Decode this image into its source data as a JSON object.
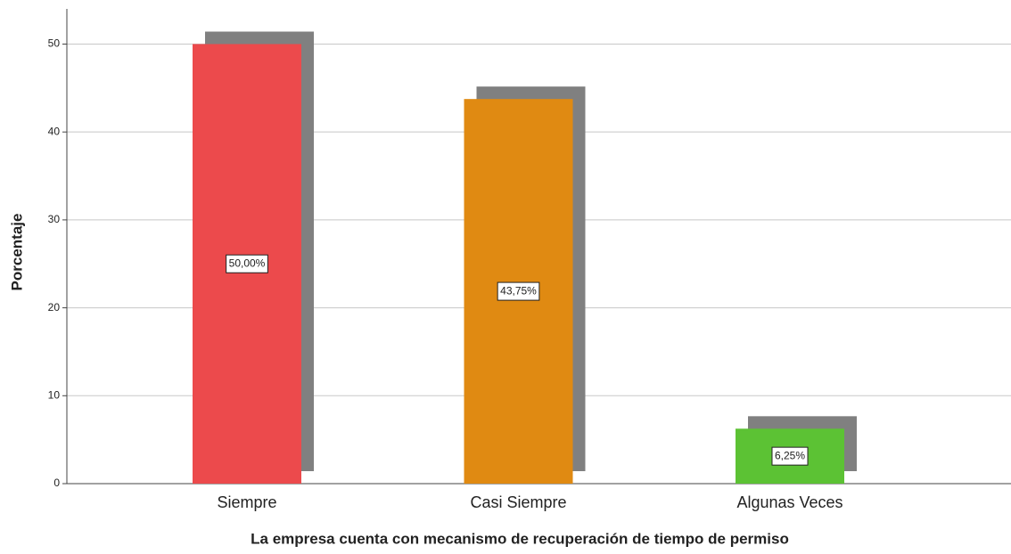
{
  "chart_data": {
    "type": "bar",
    "x_label": "La empresa cuenta con mecanismo de recuperación de tiempo de permiso",
    "y_label": "Porcentaje",
    "categories": [
      "Siempre",
      "Casi Siempre",
      "Algunas Veces"
    ],
    "values": [
      50,
      43.75,
      6.25
    ],
    "value_labels": [
      "50,00%",
      "43,75%",
      "6,25%"
    ],
    "colors": [
      "#ec4a4c",
      "#e08a12",
      "#5cc234"
    ],
    "shadow_color": "#808080",
    "ylim": [
      0,
      54
    ],
    "yticks": [
      0,
      10,
      20,
      30,
      40,
      50
    ],
    "grid": true
  }
}
